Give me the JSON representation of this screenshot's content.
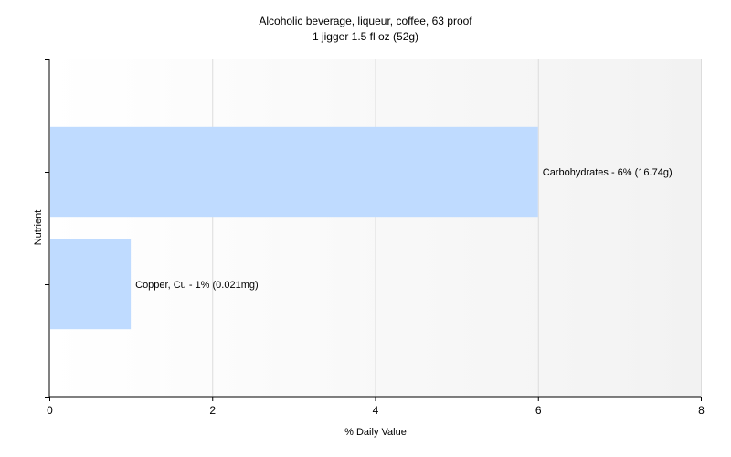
{
  "chart_data": {
    "type": "bar",
    "orientation": "horizontal",
    "title": "Alcoholic beverage, liqueur, coffee, 63 proof",
    "subtitle": "1 jigger 1.5 fl oz (52g)",
    "xlabel": "% Daily Value",
    "ylabel": "Nutrient",
    "xlim": [
      0,
      8
    ],
    "xticks": [
      0,
      2,
      4,
      6,
      8
    ],
    "grid": true,
    "legend": "none",
    "bar_color": "#bfdbff",
    "categories": [
      "Carbohydrates",
      "Copper, Cu"
    ],
    "values": [
      6,
      1
    ],
    "data_labels": [
      "Carbohydrates - 6% (16.74g)",
      "Copper, Cu - 1% (0.021mg)"
    ]
  }
}
